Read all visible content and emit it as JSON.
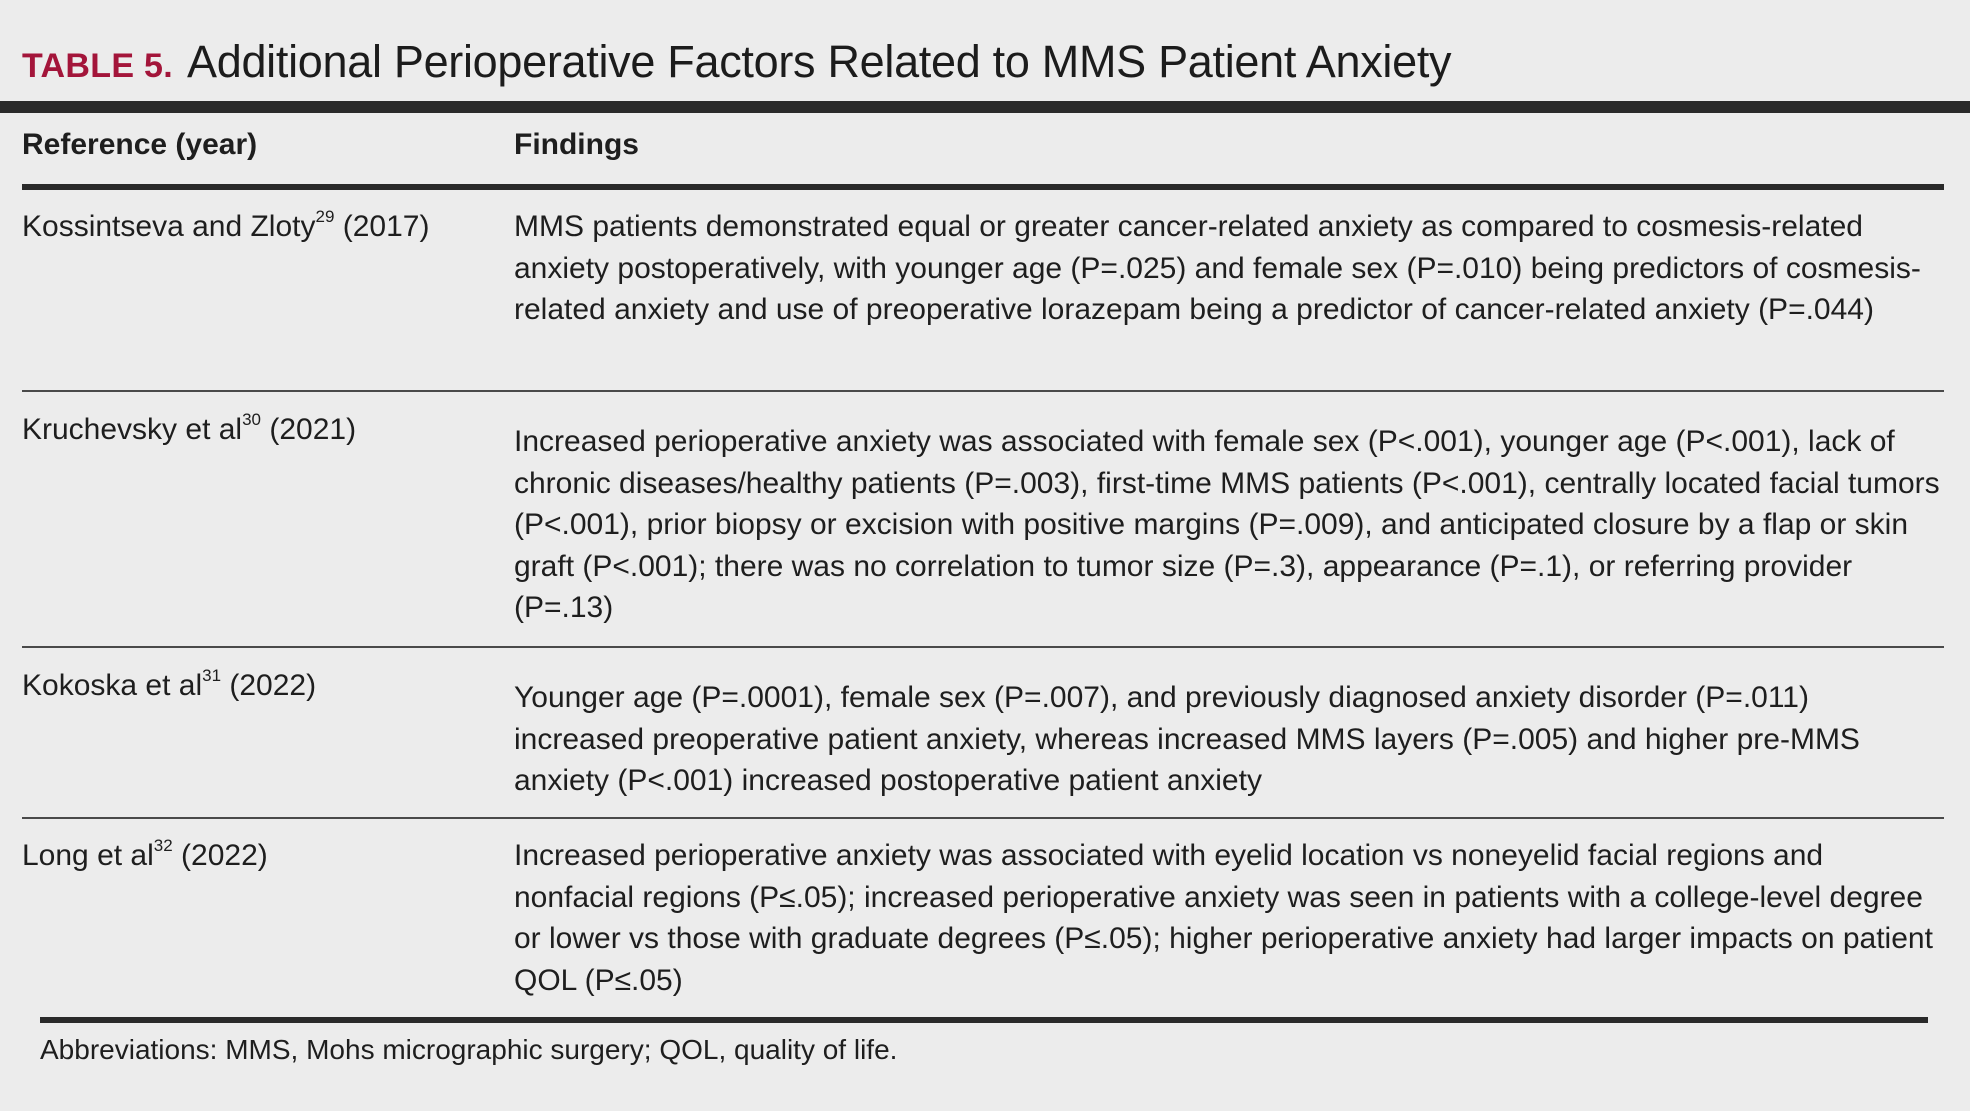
{
  "title": {
    "label": "TABLE 5.",
    "text": "Additional Perioperative Factors Related to MMS Patient Anxiety"
  },
  "header": {
    "col1": "Reference (year)",
    "col2": "Findings"
  },
  "rows": [
    {
      "ref_name": "Kossintseva and Zloty",
      "ref_sup": "29",
      "ref_year": "(2017)",
      "finding": "MMS patients demonstrated equal or greater cancer-related anxiety as compared to cosmesis-related anxiety postoperatively, with younger age (P=.025) and female sex (P=.010) being predictors of cosmesis-related anxiety and use of preoperative lorazepam being a predictor of cancer-related anxiety (P=.044)"
    },
    {
      "ref_name": "Kruchevsky et al",
      "ref_sup": "30",
      "ref_year": "(2021)",
      "finding": "Increased perioperative anxiety was associated with female sex (P<.001), younger age (P<.001), lack of chronic diseases/healthy patients (P=.003), first-time MMS patients (P<.001), centrally located facial tumors (P<.001), prior biopsy or excision with positive margins (P=.009), and anticipated closure by a flap or skin graft (P<.001); there was no correlation to tumor size (P=.3), appearance (P=.1), or referring provider (P=.13)"
    },
    {
      "ref_name": "Kokoska et al",
      "ref_sup": "31",
      "ref_year": "(2022)",
      "finding": "Younger age (P=.0001), female sex (P=.007), and previously diagnosed anxiety disorder (P=.011) increased preoperative patient anxiety, whereas increased MMS layers (P=.005) and higher pre-MMS anxiety (P<.001) increased postoperative patient anxiety"
    },
    {
      "ref_name": "Long et al",
      "ref_sup": "32",
      "ref_year": "(2022)",
      "finding": "Increased perioperative anxiety was associated with eyelid location vs noneyelid facial regions and nonfacial regions (P≤.05); increased perioperative anxiety was seen in patients with a college-level degree or lower vs those with graduate degrees (P≤.05); higher perioperative anxiety had larger impacts on patient QOL (P≤.05)"
    }
  ],
  "footnote": "Abbreviations: MMS, Mohs micrographic surgery; QOL, quality of life."
}
